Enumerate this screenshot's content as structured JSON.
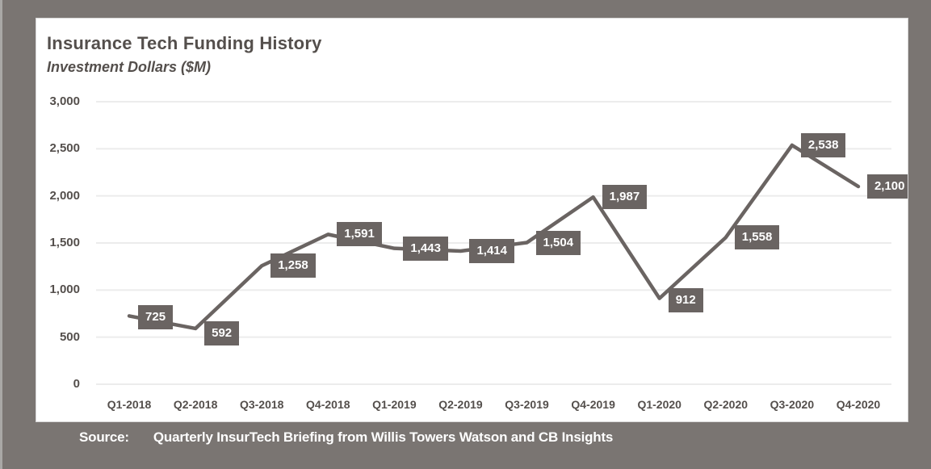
{
  "colors": {
    "background": "#7a7572",
    "left_stripe": "#a9a8a6",
    "panel_bg": "#ffffff",
    "panel_border": "#d8d8d8",
    "line": "#6a6462",
    "label_bg": "#6a6462",
    "label_text": "#ffffff",
    "grid": "#ececec",
    "axis_text": "#544f4c"
  },
  "chart_data": {
    "type": "line",
    "title": "Insurance Tech Funding History",
    "subtitle": "Investment Dollars ($M)",
    "categories": [
      "Q1-2018",
      "Q2-2018",
      "Q3-2018",
      "Q4-2018",
      "Q1-2019",
      "Q2-2019",
      "Q3-2019",
      "Q4-2019",
      "Q1-2020",
      "Q2-2020",
      "Q3-2020",
      "Q4-2020"
    ],
    "values": [
      725,
      592,
      1258,
      1591,
      1443,
      1414,
      1504,
      1987,
      912,
      1558,
      2538,
      2100
    ],
    "value_labels": [
      "725",
      "592",
      "1,258",
      "1,591",
      "1,443",
      "1,414",
      "1,504",
      "1,987",
      "912",
      "1,558",
      "2,538",
      "2,100"
    ],
    "xlabel": "",
    "ylabel": "",
    "ylim": [
      0,
      3000
    ],
    "ytick_interval": 500,
    "yticks": [
      {
        "value": 0,
        "label": "0"
      },
      {
        "value": 500,
        "label": "500"
      },
      {
        "value": 1000,
        "label": "1,000"
      },
      {
        "value": 1500,
        "label": "1,500"
      },
      {
        "value": 2000,
        "label": "2,000"
      },
      {
        "value": 2500,
        "label": "2,500"
      },
      {
        "value": 3000,
        "label": "3,000"
      }
    ],
    "grid": true,
    "legend": false,
    "data_labels": "callout boxes right of each point"
  },
  "source": {
    "prefix": "Source:",
    "text": "Quarterly InsurTech Briefing from Willis Towers Watson and CB Insights"
  }
}
